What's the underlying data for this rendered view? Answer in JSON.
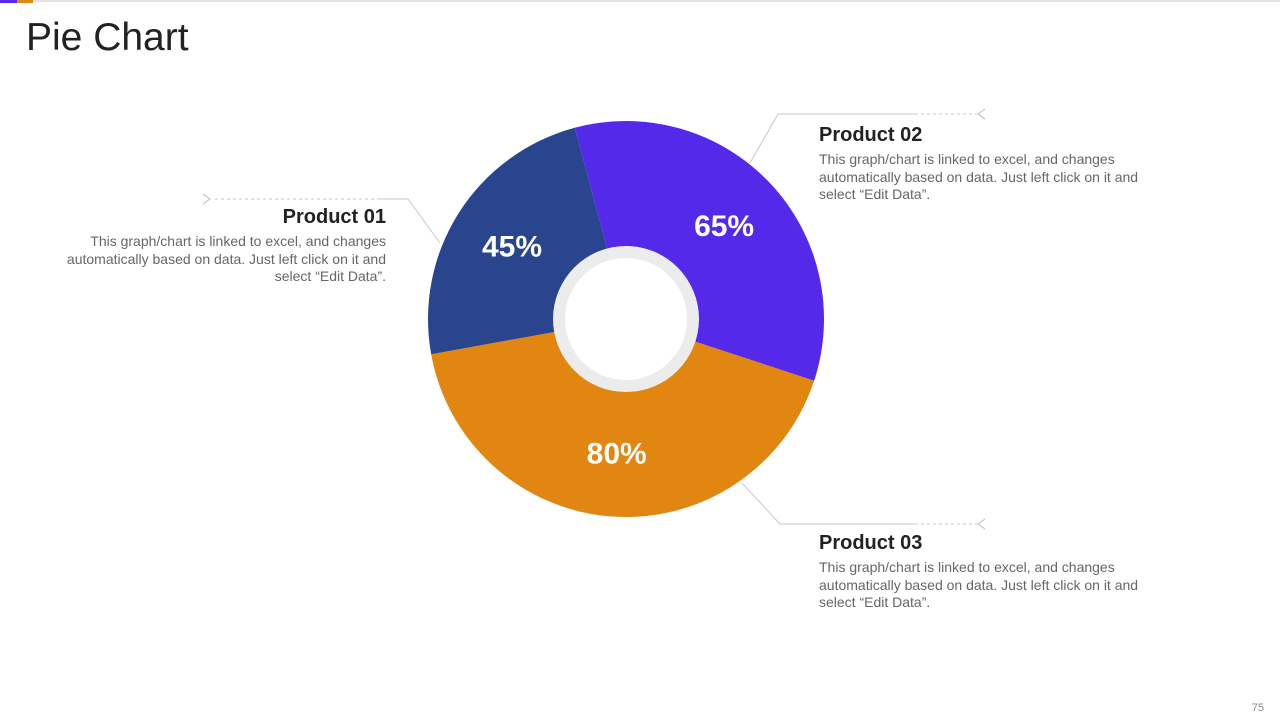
{
  "page": {
    "title": "Pie Chart",
    "slide_number": "75"
  },
  "colors": {
    "accent_purple": "#5429E9",
    "accent_orange": "#E08611",
    "navy": "#28458E"
  },
  "chart_data": {
    "type": "pie",
    "variant": "donut",
    "title": "",
    "categories": [
      "Product 01",
      "Product 02",
      "Product 03"
    ],
    "values": [
      45,
      65,
      80
    ],
    "value_labels": [
      "45%",
      "65%",
      "80%"
    ],
    "colors": [
      "#28458E",
      "#5429E9",
      "#E08611"
    ]
  },
  "callouts": [
    {
      "heading": "Product 01",
      "text": "This graph/chart is linked to excel, and changes automatically based on data. Just left click on it and select “Edit Data”."
    },
    {
      "heading": "Product 02",
      "text": "This graph/chart is linked to excel, and changes automatically based on data. Just left click on it and select “Edit Data”."
    },
    {
      "heading": "Product 03",
      "text": "This graph/chart is linked to excel, and changes automatically based on data. Just left click on it and select “Edit Data”."
    }
  ]
}
